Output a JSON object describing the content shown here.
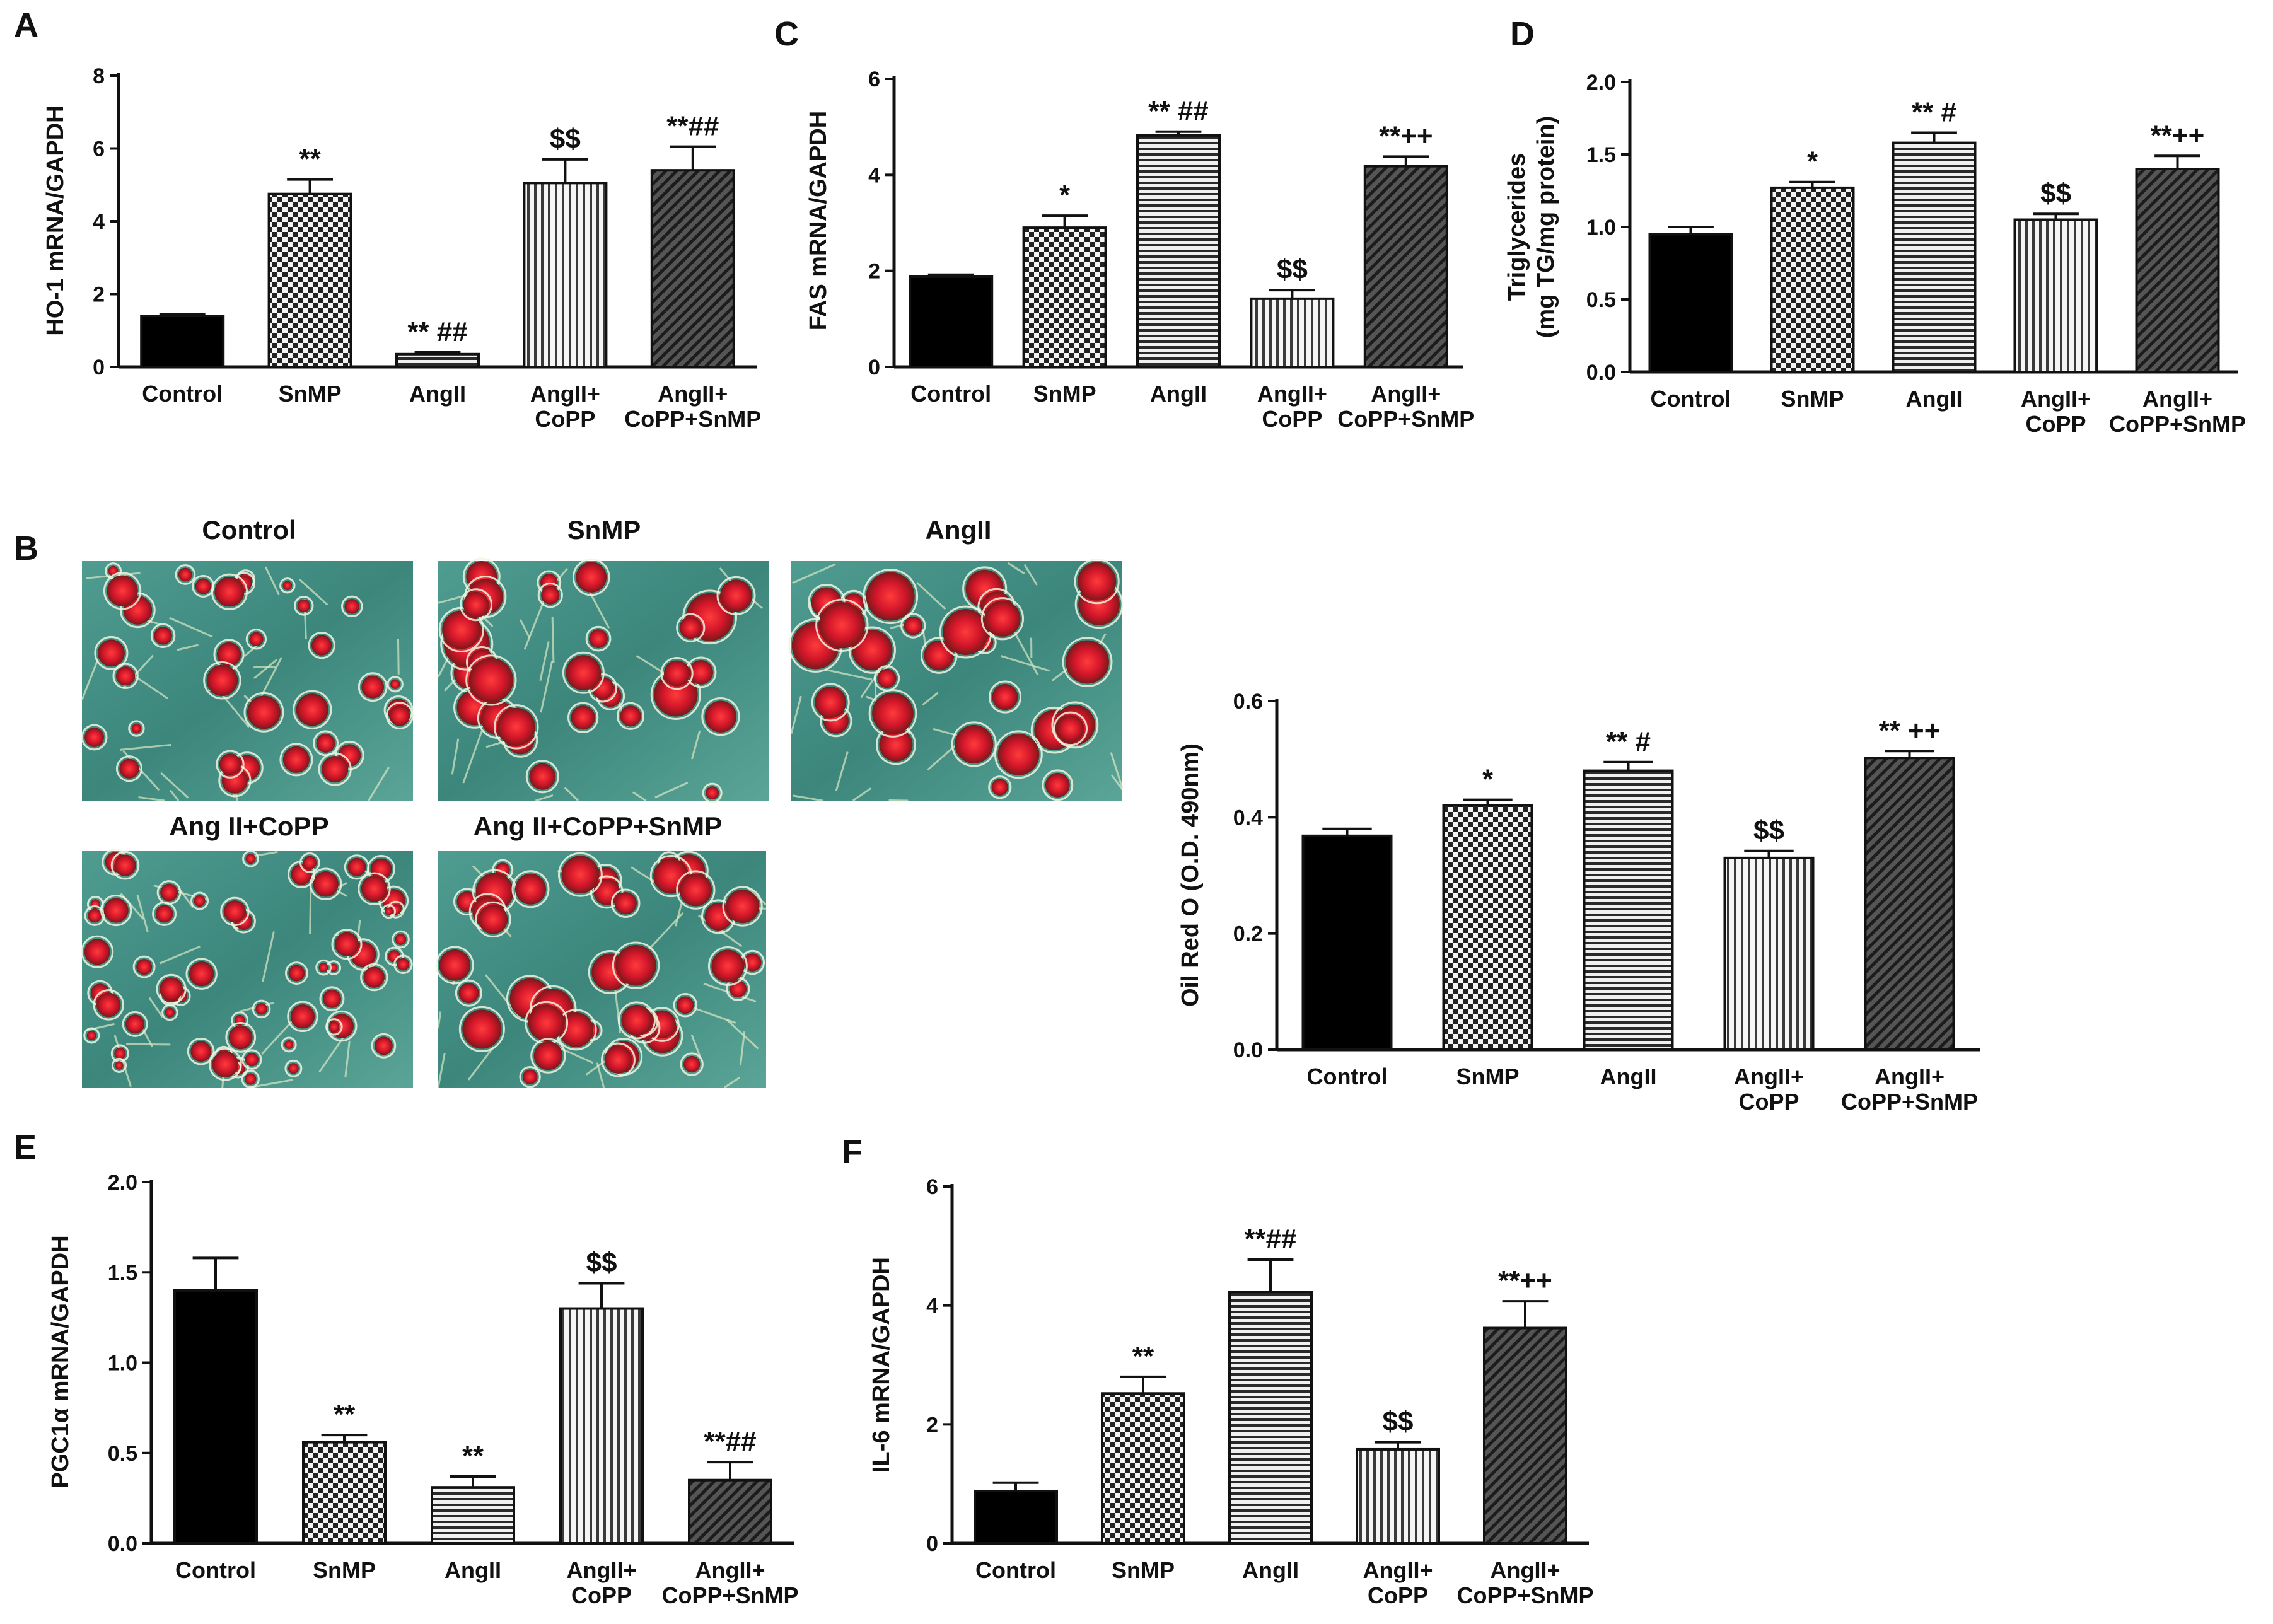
{
  "colors": {
    "ink": "#111111",
    "oil_red": "#d2162a",
    "cell_bg": "#3f8f86",
    "cell_edge": "#e6f0d8"
  },
  "images": {
    "panel_letter": "B",
    "titles": [
      "Control",
      "SnMP",
      "AngII",
      "Ang II+CoPP",
      "Ang II+CoPP+SnMP"
    ]
  },
  "chart_data": [
    {
      "id": "A",
      "panel": "A",
      "type": "bar",
      "ylabel": "HO-1 mRNA/GAPDH",
      "ylim": [
        0,
        8
      ],
      "yticks": [
        "0",
        "2",
        "4",
        "6",
        "8"
      ],
      "categories": [
        [
          "Control"
        ],
        [
          "SnMP"
        ],
        [
          "AngII"
        ],
        [
          "AngII+",
          "CoPP"
        ],
        [
          "AngII+",
          "CoPP+SnMP"
        ]
      ],
      "values": [
        1.4,
        4.75,
        0.35,
        5.05,
        5.4
      ],
      "errors": [
        0.05,
        0.4,
        0.05,
        0.65,
        0.65
      ],
      "annotations": [
        "",
        "**",
        "** ##",
        "$$",
        "**##"
      ],
      "patterns": [
        "solid",
        "checker",
        "hstripe",
        "vstripe",
        "diag"
      ]
    },
    {
      "id": "C",
      "panel": "C",
      "type": "bar",
      "ylabel": "FAS mRNA/GAPDH",
      "ylim": [
        0,
        6
      ],
      "yticks": [
        "0",
        "2",
        "4",
        "6"
      ],
      "categories": [
        [
          "Control"
        ],
        [
          "SnMP"
        ],
        [
          "AngII"
        ],
        [
          "AngII+",
          "CoPP"
        ],
        [
          "AngII+",
          "CoPP+SnMP"
        ]
      ],
      "values": [
        1.88,
        2.9,
        4.82,
        1.42,
        4.18
      ],
      "errors": [
        0.04,
        0.25,
        0.08,
        0.18,
        0.2
      ],
      "annotations": [
        "",
        "*",
        "** ##",
        "$$",
        "**++"
      ],
      "patterns": [
        "solid",
        "checker",
        "hstripe",
        "vstripe",
        "diag"
      ]
    },
    {
      "id": "D",
      "panel": "D",
      "type": "bar",
      "ylabel": [
        "Triglycerides",
        "(mg TG/mg protein)"
      ],
      "ylim": [
        0,
        2.0
      ],
      "yticks": [
        "0.0",
        "0.5",
        "1.0",
        "1.5",
        "2.0"
      ],
      "categories": [
        [
          "Control"
        ],
        [
          "SnMP"
        ],
        [
          "AngII"
        ],
        [
          "AngII+",
          "CoPP"
        ],
        [
          "AngII+",
          "CoPP+SnMP"
        ]
      ],
      "values": [
        0.95,
        1.27,
        1.58,
        1.05,
        1.4
      ],
      "errors": [
        0.05,
        0.04,
        0.07,
        0.04,
        0.09
      ],
      "annotations": [
        "",
        "*",
        "** #",
        "$$",
        "**++"
      ],
      "patterns": [
        "solid",
        "checker",
        "hstripe",
        "vstripe",
        "diag"
      ]
    },
    {
      "id": "B",
      "panel": "",
      "type": "bar",
      "ylabel": "Oil Red O (O.D. 490nm)",
      "ylim": [
        0,
        0.6
      ],
      "yticks": [
        "0.0",
        "0.2",
        "0.4",
        "0.6"
      ],
      "categories": [
        [
          "Control"
        ],
        [
          "SnMP"
        ],
        [
          "AngII"
        ],
        [
          "AngII+",
          "CoPP"
        ],
        [
          "AngII+",
          "CoPP+SnMP"
        ]
      ],
      "values": [
        0.368,
        0.42,
        0.48,
        0.33,
        0.502
      ],
      "errors": [
        0.012,
        0.01,
        0.015,
        0.012,
        0.012
      ],
      "annotations": [
        "",
        "*",
        "** #",
        "$$",
        "** ++"
      ],
      "patterns": [
        "solid",
        "checker",
        "hstripe",
        "vstripe",
        "diag"
      ]
    },
    {
      "id": "E",
      "panel": "E",
      "type": "bar",
      "ylabel": "PGC1α mRNA/GAPDH",
      "ylim": [
        0,
        2.0
      ],
      "yticks": [
        "0.0",
        "0.5",
        "1.0",
        "1.5",
        "2.0"
      ],
      "categories": [
        [
          "Control"
        ],
        [
          "SnMP"
        ],
        [
          "AngII"
        ],
        [
          "AngII+",
          "CoPP"
        ],
        [
          "AngII+",
          "CoPP+SnMP"
        ]
      ],
      "values": [
        1.4,
        0.56,
        0.31,
        1.3,
        0.35
      ],
      "errors": [
        0.18,
        0.04,
        0.06,
        0.14,
        0.1
      ],
      "annotations": [
        "",
        "**",
        "**",
        "$$",
        "**##"
      ],
      "patterns": [
        "solid",
        "checker",
        "hstripe",
        "vstripe",
        "diag"
      ]
    },
    {
      "id": "F",
      "panel": "F",
      "type": "bar",
      "ylabel": "IL-6  mRNA/GAPDH",
      "ylim": [
        0,
        6
      ],
      "yticks": [
        "0",
        "2",
        "4",
        "6"
      ],
      "categories": [
        [
          "Control"
        ],
        [
          "SnMP"
        ],
        [
          "AngII"
        ],
        [
          "AngII+",
          "CoPP"
        ],
        [
          "AngII+",
          "CoPP+SnMP"
        ]
      ],
      "values": [
        0.88,
        2.52,
        4.22,
        1.58,
        3.62
      ],
      "errors": [
        0.14,
        0.28,
        0.55,
        0.12,
        0.45
      ],
      "annotations": [
        "",
        "**",
        "**##",
        "$$",
        "**++"
      ],
      "patterns": [
        "solid",
        "checker",
        "hstripe",
        "vstripe",
        "diag"
      ]
    }
  ]
}
